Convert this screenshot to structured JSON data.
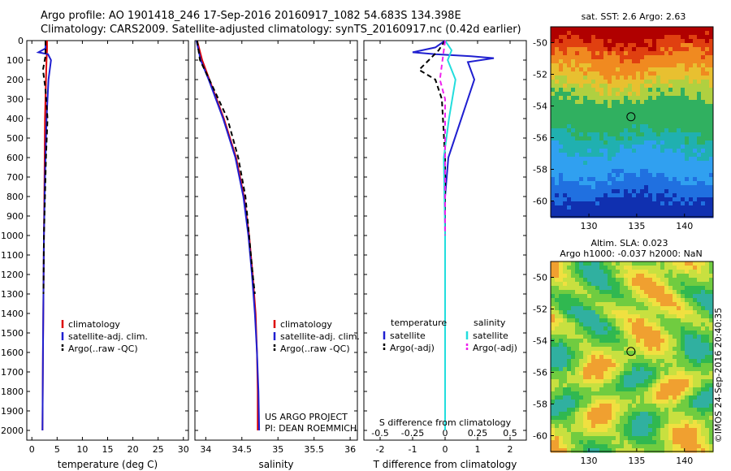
{
  "header": {
    "line1": "Argo profile: AO 1901418_246 17-Sep-2016 20160917_1082 54.683S 134.398E",
    "line2": "Climatology: CARS2009. Satellite-adjusted climatology: synTS_20160917.nc (0.42d earlier)"
  },
  "colors": {
    "climatology": "#dd0000",
    "satellite": "#1f1fd0",
    "argo": "#000000",
    "sal_satellite": "#22dddd",
    "sal_argo": "#ee22ee"
  },
  "chart_data": [
    {
      "type": "line",
      "xlabel": "temperature (deg C)",
      "xlim": [
        -1,
        31
      ],
      "ylim": [
        0,
        2050
      ],
      "y_inverted": true,
      "xticks": [
        0,
        5,
        10,
        15,
        20,
        25,
        30
      ],
      "yticks": [
        0,
        100,
        200,
        300,
        400,
        500,
        600,
        700,
        800,
        900,
        1000,
        1100,
        1200,
        1300,
        1400,
        1500,
        1600,
        1700,
        1800,
        1900,
        2000
      ],
      "legend": [
        "climatology",
        "satellite-adj. clim.",
        "Argo(..raw -QC)"
      ],
      "series": [
        {
          "name": "climatology",
          "style": "solid",
          "color": "#dd0000",
          "points": [
            [
              3.0,
              0
            ],
            [
              3.0,
              50
            ],
            [
              2.9,
              100
            ],
            [
              2.8,
              200
            ],
            [
              2.6,
              400
            ],
            [
              2.5,
              700
            ],
            [
              2.4,
              1000
            ],
            [
              2.3,
              1300
            ],
            [
              2.2,
              1600
            ],
            [
              2.1,
              2000
            ]
          ]
        },
        {
          "name": "satellite-adj. clim.",
          "style": "solid",
          "color": "#1f1fd0",
          "points": [
            [
              2.7,
              0
            ],
            [
              2.7,
              40
            ],
            [
              1.3,
              60
            ],
            [
              3.2,
              70
            ],
            [
              3.8,
              100
            ],
            [
              3.3,
              200
            ],
            [
              2.9,
              400
            ],
            [
              2.6,
              700
            ],
            [
              2.4,
              1000
            ],
            [
              2.3,
              1300
            ],
            [
              2.2,
              1600
            ],
            [
              2.1,
              2000
            ]
          ]
        },
        {
          "name": "Argo(..raw -QC)",
          "style": "dashed",
          "color": "#000000",
          "points": [
            [
              2.7,
              0
            ],
            [
              2.7,
              80
            ],
            [
              2.2,
              150
            ],
            [
              2.7,
              250
            ],
            [
              3.1,
              400
            ],
            [
              2.8,
              600
            ],
            [
              2.6,
              800
            ],
            [
              2.4,
              1000
            ],
            [
              2.3,
              1300
            ]
          ]
        }
      ]
    },
    {
      "type": "line",
      "xlabel": "salinity",
      "xlim": [
        33.85,
        36.1
      ],
      "ylim": [
        0,
        2050
      ],
      "y_inverted": true,
      "xticks": [
        34,
        34.5,
        35,
        35.5,
        36
      ],
      "legend": [
        "climatology",
        "satellite-adj. clim.",
        "Argo(..raw -QC)"
      ],
      "annotations": [
        "US ARGO PROJECT",
        "PI: DEAN ROEMMICH"
      ],
      "series": [
        {
          "name": "climatology",
          "style": "solid",
          "color": "#dd0000",
          "points": [
            [
              33.88,
              0
            ],
            [
              33.95,
              100
            ],
            [
              34.05,
              200
            ],
            [
              34.25,
              400
            ],
            [
              34.42,
              600
            ],
            [
              34.53,
              800
            ],
            [
              34.6,
              1000
            ],
            [
              34.65,
              1200
            ],
            [
              34.69,
              1400
            ],
            [
              34.71,
              1600
            ],
            [
              34.72,
              1800
            ],
            [
              34.72,
              2000
            ]
          ]
        },
        {
          "name": "satellite-adj. clim.",
          "style": "solid",
          "color": "#1f1fd0",
          "points": [
            [
              33.87,
              0
            ],
            [
              33.93,
              100
            ],
            [
              34.04,
              200
            ],
            [
              34.24,
              400
            ],
            [
              34.41,
              600
            ],
            [
              34.52,
              800
            ],
            [
              34.59,
              1000
            ],
            [
              34.64,
              1200
            ],
            [
              34.68,
              1400
            ],
            [
              34.71,
              1600
            ],
            [
              34.73,
              1800
            ],
            [
              34.74,
              2000
            ]
          ]
        },
        {
          "name": "Argo(..raw -QC)",
          "style": "dashed",
          "color": "#000000",
          "points": [
            [
              33.88,
              0
            ],
            [
              33.92,
              100
            ],
            [
              34.05,
              200
            ],
            [
              34.3,
              400
            ],
            [
              34.45,
              600
            ],
            [
              34.55,
              800
            ],
            [
              34.6,
              1000
            ],
            [
              34.65,
              1200
            ],
            [
              34.68,
              1300
            ]
          ]
        }
      ]
    },
    {
      "type": "line",
      "xlabel": "T difference from climatology",
      "xlabel2": "S difference from climatology",
      "xlim": [
        -2.5,
        2.5
      ],
      "ylim": [
        0,
        2050
      ],
      "y_inverted": true,
      "xticks": [
        -2,
        -1,
        0,
        1,
        2
      ],
      "xticks2": [
        -0.5,
        -0.25,
        0,
        0.25,
        0.5
      ],
      "legend_groups": [
        "temperature",
        "salinity"
      ],
      "legend": [
        "satellite",
        "Argo(-adj)",
        "satellite",
        "Argo(-adj)"
      ],
      "series": [
        {
          "name": "satellite",
          "group": "temperature",
          "style": "solid",
          "color": "#1f1fd0",
          "points": [
            [
              0,
              0
            ],
            [
              -0.3,
              35
            ],
            [
              -1.0,
              60
            ],
            [
              -0.3,
              70
            ],
            [
              0.8,
              80
            ],
            [
              1.5,
              90
            ],
            [
              0.7,
              110
            ],
            [
              0.9,
              200
            ],
            [
              0.5,
              400
            ],
            [
              0.1,
              600
            ],
            [
              0,
              800
            ],
            [
              0,
              1000
            ],
            [
              0,
              1500
            ],
            [
              0,
              2000
            ]
          ]
        },
        {
          "name": "Argo(-adj)",
          "group": "temperature",
          "style": "dashed",
          "color": "#000000",
          "points": [
            [
              0,
              0
            ],
            [
              -0.2,
              50
            ],
            [
              -0.5,
              100
            ],
            [
              -0.8,
              150
            ],
            [
              -0.3,
              200
            ],
            [
              -0.1,
              300
            ],
            [
              0,
              600
            ],
            [
              0,
              900
            ],
            [
              0,
              1300
            ]
          ]
        },
        {
          "name": "satellite",
          "group": "salinity",
          "style": "solid",
          "color": "#22dddd",
          "points": [
            [
              0,
              0
            ],
            [
              0.05,
              50
            ],
            [
              0.02,
              100
            ],
            [
              0.08,
              200
            ],
            [
              0.03,
              400
            ],
            [
              -0.01,
              600
            ],
            [
              0,
              1000
            ],
            [
              0,
              1500
            ],
            [
              0,
              2000
            ]
          ]
        },
        {
          "name": "Argo(-adj)",
          "group": "salinity",
          "style": "dashed",
          "color": "#ee22ee",
          "points": [
            [
              0,
              0
            ],
            [
              -0.02,
              100
            ],
            [
              -0.04,
              200
            ],
            [
              0,
              300
            ],
            [
              0,
              600
            ],
            [
              0,
              1000
            ]
          ]
        }
      ]
    },
    {
      "type": "heatmap",
      "title": "sat. SST: 2.6 Argo: 2.63",
      "xlim": [
        126,
        143
      ],
      "ylim": [
        -61,
        -49
      ],
      "xticks": [
        130,
        135,
        140
      ],
      "yticks": [
        -50,
        -52,
        -54,
        -56,
        -58,
        -60
      ],
      "marker": {
        "lon": 134.4,
        "lat": -54.68
      },
      "colorbar_note": "warm (red/orange) north, green mid, blue south"
    },
    {
      "type": "heatmap",
      "title": "Altim. SLA: 0.023",
      "subtitle": "Argo h1000: -0.037 h2000: NaN",
      "xlim": [
        126,
        143
      ],
      "ylim": [
        -61,
        -49
      ],
      "xticks": [
        130,
        135,
        140
      ],
      "yticks": [
        -50,
        -52,
        -54,
        -56,
        -58,
        -60
      ],
      "marker": {
        "lon": 134.4,
        "lat": -54.68
      }
    }
  ],
  "side_note": "©IMOS 24-Sep-2016 20:40:35"
}
